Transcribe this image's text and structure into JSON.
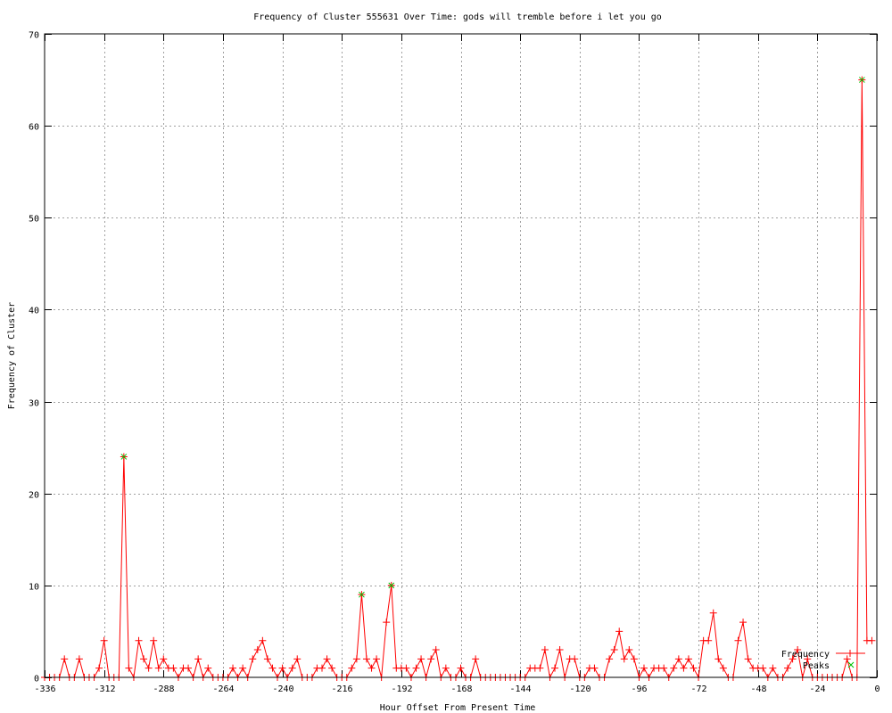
{
  "chart_data": {
    "type": "line",
    "title": "Frequency of Cluster 555631 Over Time: gods will tremble before i let you go",
    "xlabel": "Hour Offset From Present Time",
    "ylabel": "Frequency of Cluster",
    "xlim": [
      -336,
      0
    ],
    "ylim": [
      0,
      70
    ],
    "xticks": [
      -336,
      -312,
      -288,
      -264,
      -240,
      -216,
      -192,
      -168,
      -144,
      -120,
      -96,
      -72,
      -48,
      -24,
      0
    ],
    "yticks": [
      0,
      10,
      20,
      30,
      40,
      50,
      60,
      70
    ],
    "grid": true,
    "legend_placement": "bottom-right",
    "series": [
      {
        "name": "Frequency",
        "color": "#ff0000",
        "marker": "plus",
        "x_start": -336,
        "x_step": 2,
        "values": [
          0,
          0,
          0,
          0,
          2,
          0,
          0,
          2,
          0,
          0,
          0,
          1,
          4,
          0,
          0,
          0,
          24,
          1,
          0,
          4,
          2,
          1,
          4,
          1,
          2,
          1,
          1,
          0,
          1,
          1,
          0,
          2,
          0,
          1,
          0,
          0,
          0,
          0,
          1,
          0,
          1,
          0,
          2,
          3,
          4,
          2,
          1,
          0,
          1,
          0,
          1,
          2,
          0,
          0,
          0,
          1,
          1,
          2,
          1,
          0,
          0,
          0,
          1,
          2,
          9,
          2,
          1,
          2,
          0,
          6,
          10,
          1,
          1,
          1,
          0,
          1,
          2,
          0,
          2,
          3,
          0,
          1,
          0,
          0,
          1,
          0,
          0,
          2,
          0,
          0,
          0,
          0,
          0,
          0,
          0,
          0,
          0,
          0,
          1,
          1,
          1,
          3,
          0,
          1,
          3,
          0,
          2,
          2,
          0,
          0,
          1,
          1,
          0,
          0,
          2,
          3,
          5,
          2,
          3,
          2,
          0,
          1,
          0,
          1,
          1,
          1,
          0,
          1,
          2,
          1,
          2,
          1,
          0,
          4,
          4,
          7,
          2,
          1,
          0,
          0,
          4,
          6,
          2,
          1,
          1,
          1,
          0,
          1,
          0,
          0,
          1,
          2,
          3,
          0,
          2,
          0,
          0,
          0,
          0,
          0,
          0,
          0,
          2,
          0,
          0,
          65,
          4,
          4
        ]
      },
      {
        "name": "Peaks",
        "color": "#00c000",
        "marker": "cross",
        "points": [
          [
            -304,
            24
          ],
          [
            -208,
            9
          ],
          [
            -196,
            10
          ],
          [
            -6,
            65
          ]
        ]
      }
    ]
  }
}
